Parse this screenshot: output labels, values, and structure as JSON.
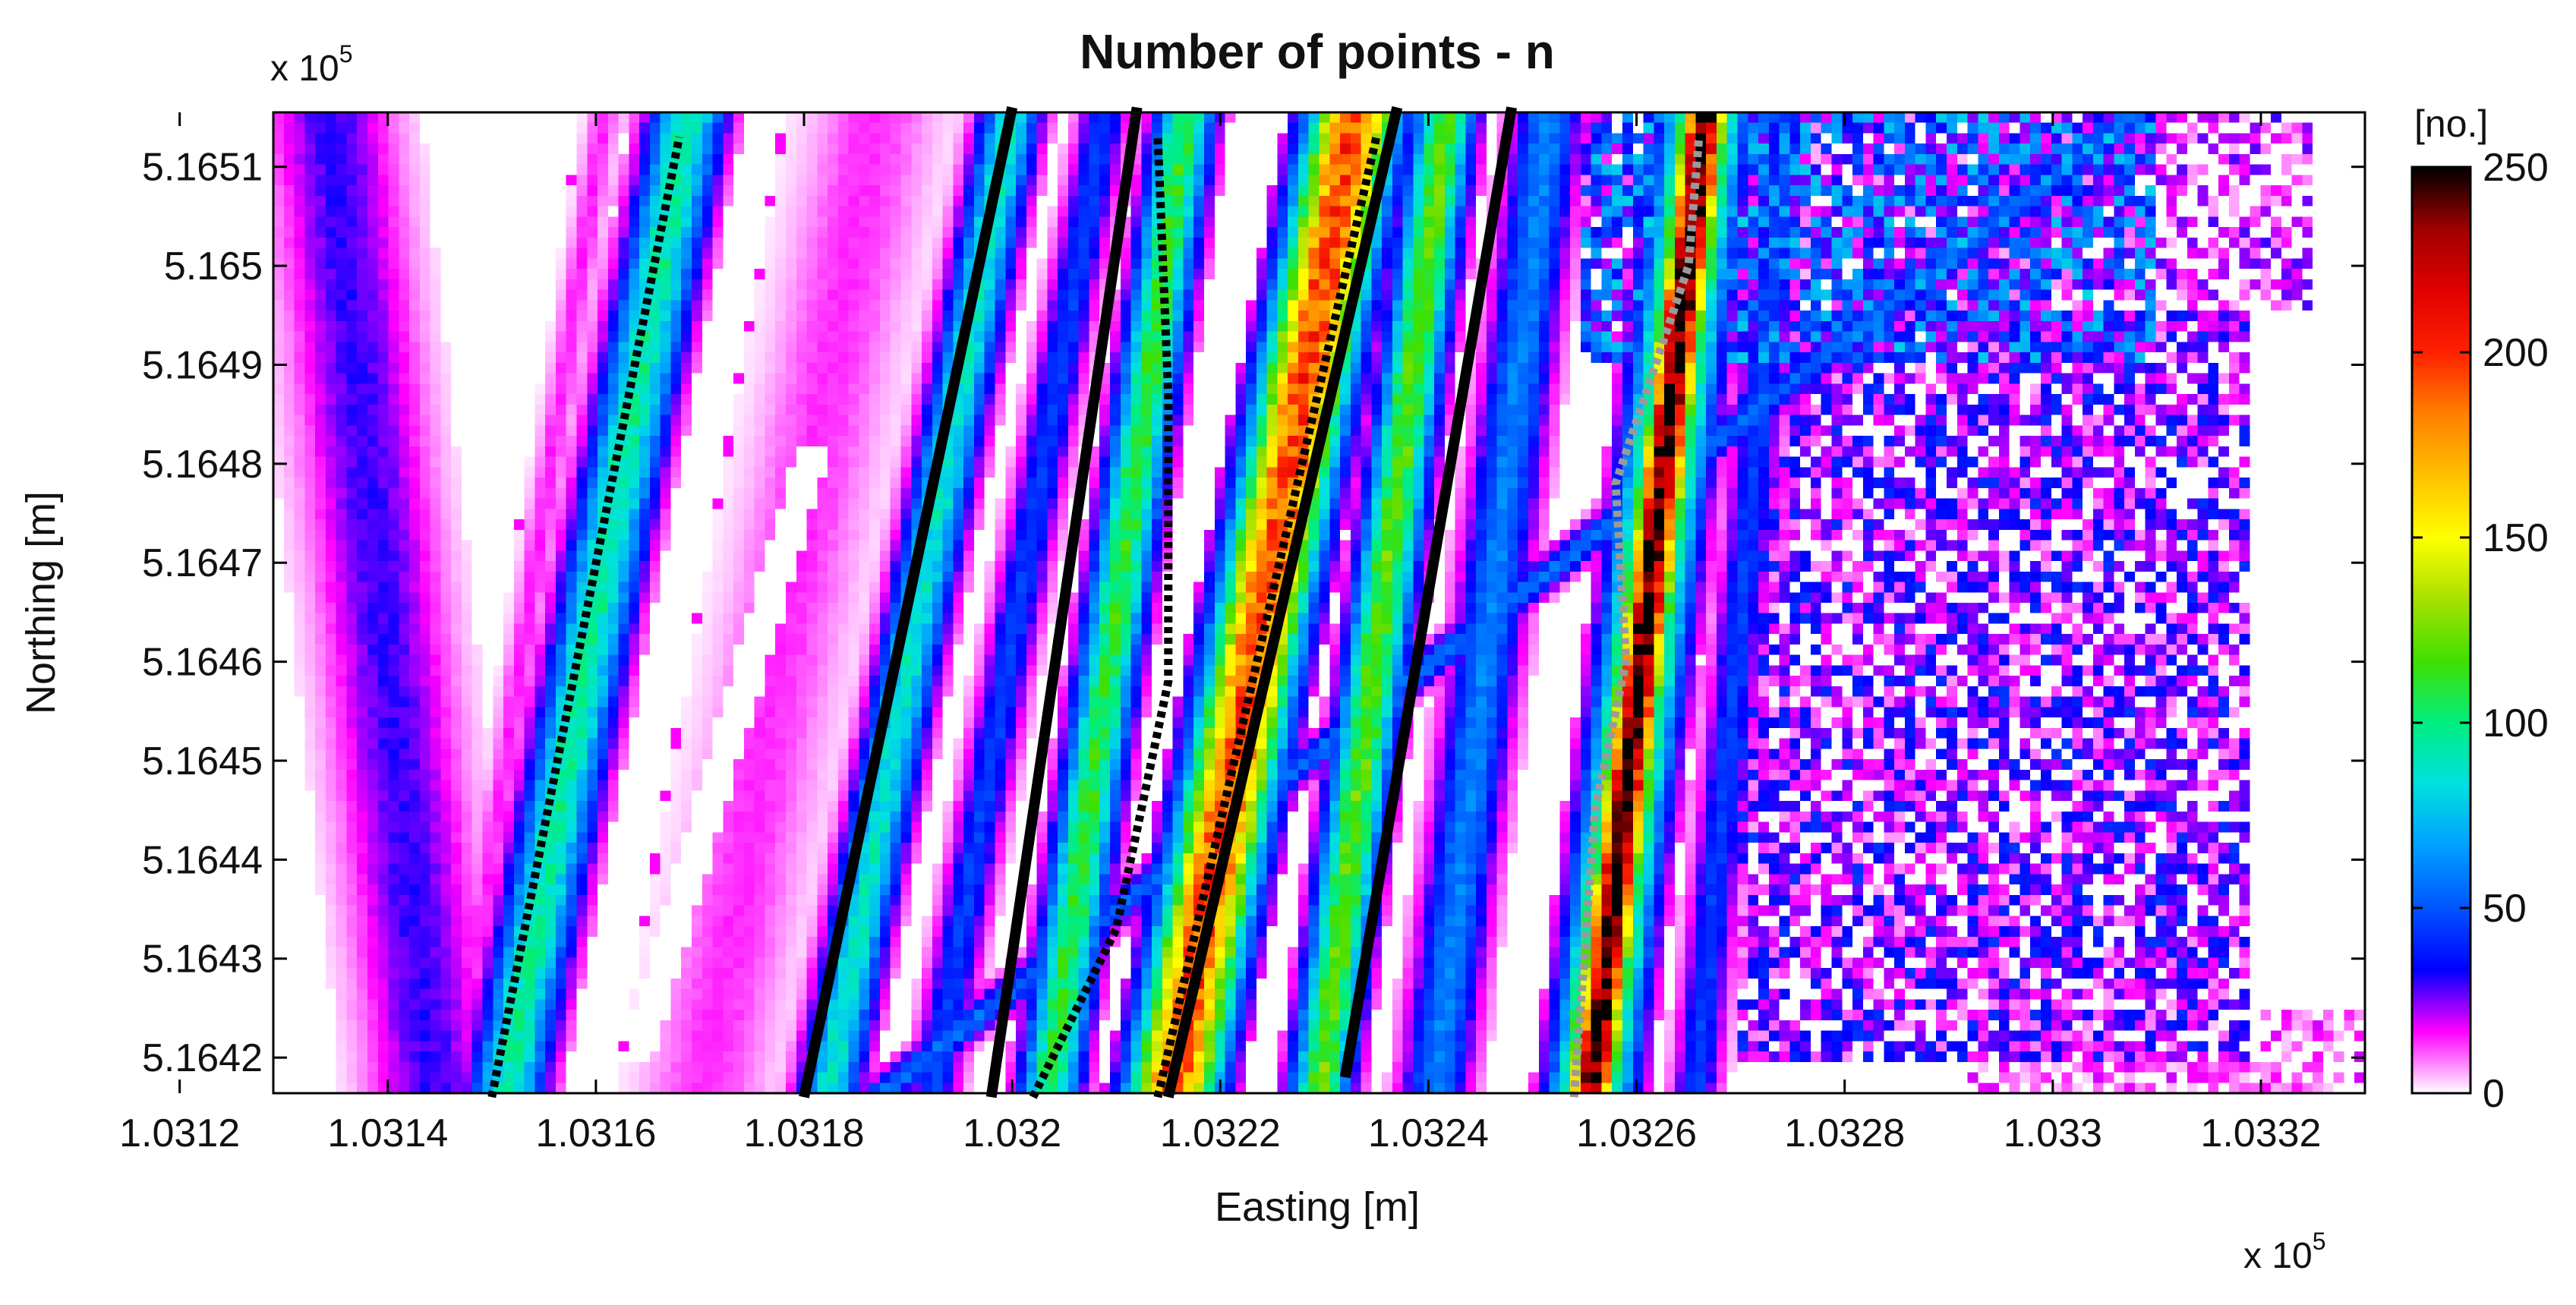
{
  "chart_data": {
    "type": "heatmap",
    "title": "Number of points - n",
    "xlabel": "Easting [m]",
    "ylabel": "Northing [m]",
    "x_exponent_label": "x 10",
    "x_exponent": "5",
    "y_exponent_label": "x 10",
    "y_exponent": "5",
    "xlim": [
      1.03129,
      1.0333
    ],
    "ylim": [
      5.164164,
      5.165155
    ],
    "x_ticks": [
      1.0312,
      1.0314,
      1.0316,
      1.0318,
      1.032,
      1.0322,
      1.0324,
      1.0326,
      1.0328,
      1.033,
      1.0332
    ],
    "x_tick_labels": [
      "1.0312",
      "1.0314",
      "1.0316",
      "1.0318",
      "1.032",
      "1.0322",
      "1.0324",
      "1.0326",
      "1.0328",
      "1.033",
      "1.0332"
    ],
    "y_ticks": [
      5.1642,
      5.1643,
      5.1644,
      5.1645,
      5.1646,
      5.1647,
      5.1648,
      5.1649,
      5.165,
      5.1651
    ],
    "y_tick_labels": [
      "5.1642",
      "5.1643",
      "5.1644",
      "5.1645",
      "5.1646",
      "5.1647",
      "5.1648",
      "5.1649",
      "5.165",
      "5.1651"
    ],
    "colorbar": {
      "label": "[no.]",
      "range": [
        0,
        250
      ],
      "ticks": [
        0,
        50,
        100,
        150,
        200,
        250
      ],
      "tick_labels": [
        "0",
        "50",
        "100",
        "150",
        "200",
        "250"
      ],
      "colors": [
        "#ffffff",
        "#ff00ff",
        "#0000ff",
        "#0055ff",
        "#00a0ff",
        "#00e0e0",
        "#00ee80",
        "#40e000",
        "#a8e000",
        "#ffff00",
        "#ffc000",
        "#ff8000",
        "#ff2000",
        "#e00000",
        "#a00000",
        "#000000"
      ]
    },
    "grid": false,
    "legend": "none",
    "bands": [
      {
        "x0": 1.03134,
        "x1": 1.03144,
        "y0": 5.1652,
        "y1": 5.1642,
        "half_width": 4e-05,
        "peak": 30
      },
      {
        "x0": 1.03147,
        "x1": 1.0316,
        "y0": 5.1642,
        "y1": 5.1651,
        "half_width": 1e-05,
        "peak": 15
      },
      {
        "x0": 1.03152,
        "x1": 1.03168,
        "y0": 5.1642,
        "y1": 5.1651,
        "half_width": 2.5e-05,
        "peak": 95
      },
      {
        "x0": 1.03171,
        "x1": 1.03186,
        "y0": 5.1642,
        "y1": 5.1651,
        "half_width": 4e-05,
        "peak": 14
      },
      {
        "x0": 1.03183,
        "x1": 1.03199,
        "y0": 5.1642,
        "y1": 5.1651,
        "half_width": 2e-05,
        "peak": 88
      },
      {
        "x0": 1.03193,
        "x1": 1.03208,
        "y0": 5.1642,
        "y1": 5.1651,
        "half_width": 1.6e-05,
        "peak": 45
      },
      {
        "x0": 1.03204,
        "x1": 1.03216,
        "y0": 5.1642,
        "y1": 5.1651,
        "half_width": 2e-05,
        "peak": 110
      },
      {
        "x0": 1.03216,
        "x1": 1.03232,
        "y0": 5.1642,
        "y1": 5.1651,
        "half_width": 3e-05,
        "peak": 195
      },
      {
        "x0": 1.0323,
        "x1": 1.03241,
        "y0": 5.1642,
        "y1": 5.1651,
        "half_width": 2e-05,
        "peak": 120
      },
      {
        "x0": 1.03241,
        "x1": 1.03251,
        "y0": 5.1642,
        "y1": 5.1651,
        "half_width": 2.2e-05,
        "peak": 60
      },
      {
        "x0": 1.03256,
        "x1": 1.03266,
        "y0": 5.1642,
        "y1": 5.1651,
        "half_width": 1.6e-05,
        "peak": 250
      },
      {
        "x0": 1.03256,
        "x1": 1.03266,
        "y0": 5.1642,
        "y1": 5.1651,
        "half_width": 2.6e-05,
        "peak": 150
      },
      {
        "x0": 1.03266,
        "x1": 1.03274,
        "y0": 5.1642,
        "y1": 5.1651,
        "half_width": 1.5e-05,
        "peak": 45
      },
      {
        "x0": 1.03271,
        "x1": 1.0331,
        "y0": 5.16485,
        "y1": 5.16517,
        "half_width": 1.8e-05,
        "peak": 55
      }
    ],
    "gaps": [
      {
        "x0": 1.03164,
        "x1": 1.03181,
        "y0": 5.1642,
        "y1": 5.16482,
        "half_width": 1.6e-05
      }
    ],
    "sparse_zones": [
      {
        "xmin": 1.0327,
        "xmax": 1.03319,
        "ymin": 5.1642,
        "ymax": 5.16495,
        "level": 22,
        "fill": 0.72
      },
      {
        "xmin": 1.03282,
        "xmax": 1.03325,
        "ymin": 5.16495,
        "ymax": 5.16516,
        "level": 15,
        "fill": 0.6
      },
      {
        "xmin": 1.03255,
        "xmax": 1.0331,
        "ymin": 5.1649,
        "ymax": 5.16516,
        "level": 40,
        "fill": 0.75
      },
      {
        "xmin": 1.03292,
        "xmax": 1.0333,
        "ymin": 5.16415,
        "ymax": 5.16425,
        "level": 10,
        "fill": 0.5
      }
    ],
    "lines": [
      {
        "style": "dotted",
        "color": "#000000",
        "points": [
          [
            1.0315,
            5.16416
          ],
          [
            1.03168,
            5.16513
          ]
        ]
      },
      {
        "style": "solid",
        "color": "#000000",
        "points": [
          [
            1.0318,
            5.16416
          ],
          [
            1.032,
            5.16516
          ]
        ]
      },
      {
        "style": "solid",
        "color": "#000000",
        "points": [
          [
            1.03198,
            5.16416
          ],
          [
            1.03212,
            5.16516
          ]
        ]
      },
      {
        "style": "dotted",
        "color": "#000000",
        "points": [
          [
            1.03202,
            5.16416
          ],
          [
            1.0321,
            5.16433
          ],
          [
            1.03215,
            5.16458
          ],
          [
            1.03215,
            5.16487
          ],
          [
            1.03214,
            5.16513
          ]
        ]
      },
      {
        "style": "dotted",
        "color": "#000000",
        "points": [
          [
            1.03214,
            5.16416
          ],
          [
            1.03235,
            5.16513
          ]
        ]
      },
      {
        "style": "solid",
        "color": "#000000",
        "points": [
          [
            1.03215,
            5.16416
          ],
          [
            1.03237,
            5.16516
          ]
        ]
      },
      {
        "style": "solid",
        "color": "#000000",
        "points": [
          [
            1.03232,
            5.16418
          ],
          [
            1.03248,
            5.16516
          ]
        ]
      },
      {
        "style": "dotted",
        "color": "#9a9a9a",
        "points": [
          [
            1.03254,
            5.16416
          ],
          [
            1.03256,
            5.16445
          ],
          [
            1.03259,
            5.1646
          ],
          [
            1.03258,
            5.16478
          ],
          [
            1.03265,
            5.165
          ],
          [
            1.03266,
            5.16513
          ]
        ]
      }
    ]
  }
}
